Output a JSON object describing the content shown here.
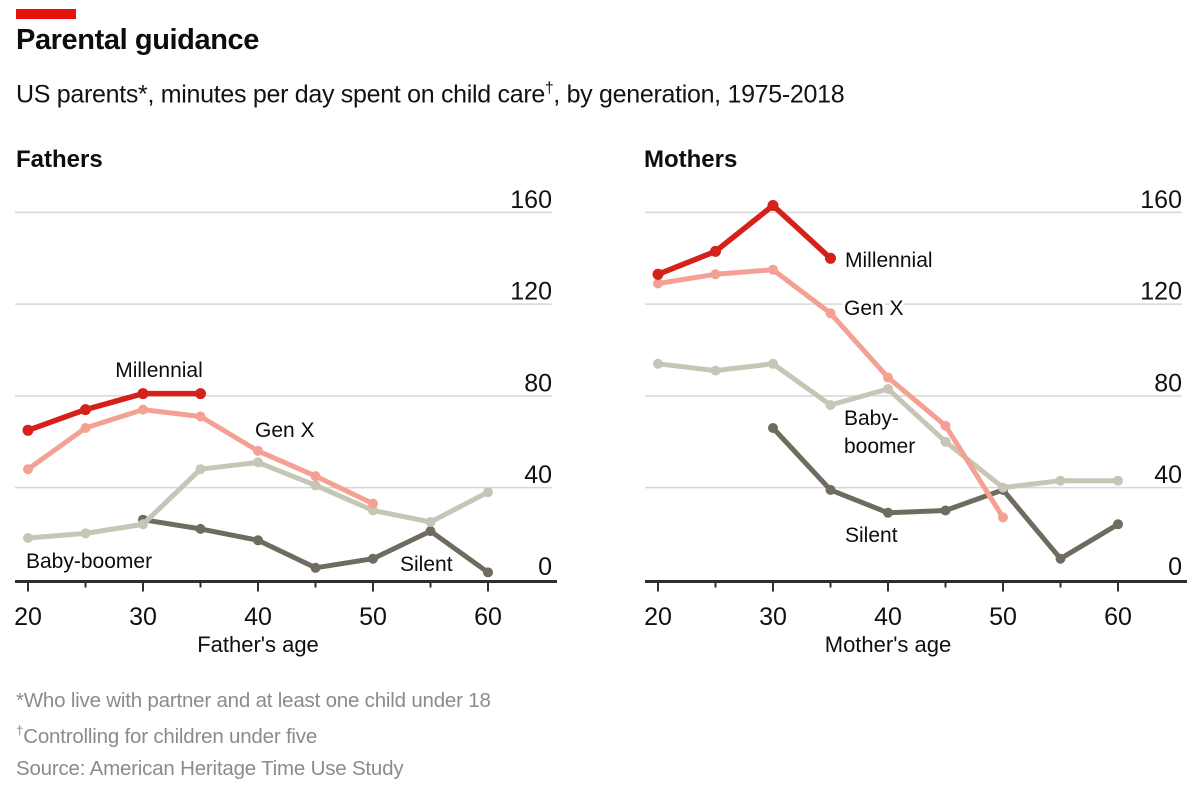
{
  "header": {
    "title": "Parental guidance",
    "subtitle_pre": "US parents*, minutes per day spent on child care",
    "subtitle_sup": "†",
    "subtitle_post": ", by generation, 1975-2018"
  },
  "colors": {
    "accent": "#e3120b",
    "millennial": "#d6201a",
    "genx": "#f4a193",
    "boomer": "#c6c6b6",
    "silent": "#6f6b5e",
    "grid": "#d8d8d8",
    "axis": "#2e2e2e",
    "text": "#0f0f0f",
    "footnote": "#8b8b8b"
  },
  "chart_data": {
    "type": "line",
    "title": "Parental guidance",
    "subtitle": "US parents, minutes per day spent on child care, by generation, 1975-2018",
    "unit": "minutes per day",
    "x_ticks": [
      20,
      25,
      30,
      35,
      40,
      45,
      50,
      55,
      60
    ],
    "x_major_labels": [
      20,
      30,
      40,
      50,
      60
    ],
    "y_gridlines": [
      40,
      80,
      120,
      160
    ],
    "y_axis_labels": [
      0,
      40,
      80,
      120,
      160
    ],
    "ylim": [
      0,
      175
    ],
    "xlim": [
      18,
      66
    ],
    "grid": true,
    "legend_position": "direct-labels-on-chart",
    "panels": [
      {
        "id": "fathers",
        "title": "Fathers",
        "xlabel": "Father's age",
        "series": [
          {
            "name": "Silent",
            "color_key": "silent",
            "ages": [
              30,
              35,
              40,
              45,
              50,
              55,
              60
            ],
            "values": [
              26,
              22,
              17,
              5,
              9,
              21,
              3
            ],
            "label": {
              "text": "Silent",
              "x": 400,
              "y": 396,
              "anchor": "start"
            }
          },
          {
            "name": "Baby-boomer",
            "color_key": "boomer",
            "ages": [
              20,
              25,
              30,
              35,
              40,
              45,
              50,
              55,
              60
            ],
            "values": [
              18,
              20,
              24,
              48,
              51,
              41,
              30,
              25,
              38
            ],
            "label": {
              "text": "Baby-boomer",
              "x": 26,
              "y": 393,
              "anchor": "start"
            }
          },
          {
            "name": "Gen X",
            "color_key": "genx",
            "ages": [
              20,
              25,
              30,
              35,
              40,
              45,
              50
            ],
            "values": [
              48,
              66,
              74,
              71,
              56,
              45,
              33
            ],
            "label": {
              "text": "Gen X",
              "x": 255,
              "y": 262,
              "anchor": "start"
            }
          },
          {
            "name": "Millennial",
            "color_key": "millennial",
            "ages": [
              20,
              25,
              30,
              35
            ],
            "values": [
              65,
              74,
              81,
              81
            ],
            "label": {
              "text": "Millennial",
              "x": 159,
              "y": 202,
              "anchor": "middle"
            }
          }
        ]
      },
      {
        "id": "mothers",
        "title": "Mothers",
        "xlabel": "Mother's age",
        "series": [
          {
            "name": "Silent",
            "color_key": "silent",
            "ages": [
              30,
              35,
              40,
              45,
              50,
              55,
              60
            ],
            "values": [
              66,
              39,
              29,
              30,
              39,
              9,
              24
            ],
            "label": {
              "text": "Silent",
              "x": 215,
              "y": 367,
              "anchor": "start"
            }
          },
          {
            "name": "Baby-boomer",
            "color_key": "boomer",
            "ages": [
              20,
              25,
              30,
              35,
              40,
              45,
              50,
              55,
              60
            ],
            "values": [
              94,
              91,
              94,
              76,
              83,
              60,
              40,
              43,
              43
            ],
            "label": {
              "lines": [
                "Baby-",
                "boomer"
              ],
              "x": 214,
              "y": 250,
              "anchor": "start"
            }
          },
          {
            "name": "Gen X",
            "color_key": "genx",
            "ages": [
              20,
              25,
              30,
              35,
              40,
              45,
              50
            ],
            "values": [
              129,
              133,
              135,
              116,
              88,
              67,
              27
            ],
            "label": {
              "text": "Gen X",
              "x": 214,
              "y": 140,
              "anchor": "start"
            }
          },
          {
            "name": "Millennial",
            "color_key": "millennial",
            "ages": [
              20,
              25,
              30,
              35
            ],
            "values": [
              133,
              143,
              163,
              140
            ],
            "label": {
              "text": "Millennial",
              "x": 215,
              "y": 92,
              "anchor": "start"
            }
          }
        ]
      }
    ]
  },
  "footnotes": {
    "line1": "*Who live with partner and at least one child under 18",
    "line2_sup": "†",
    "line2": "Controlling for children under five",
    "source": "Source: American Heritage Time Use Study"
  }
}
